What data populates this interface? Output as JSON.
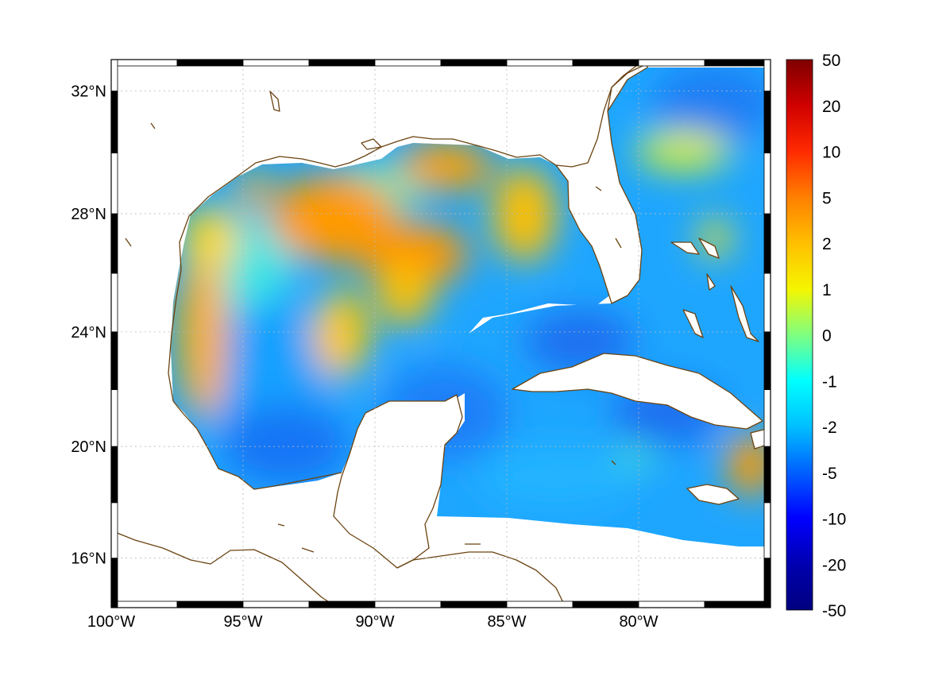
{
  "map": {
    "lon_range": [
      -100,
      -75
    ],
    "lat_range": [
      14.2,
      33
    ],
    "lon_ticks": [
      -100,
      -95,
      -90,
      -85,
      -80
    ],
    "lat_ticks": [
      16,
      20,
      24,
      28,
      32
    ],
    "lon_labels": [
      "100°W",
      "95°W",
      "90°W",
      "85°W",
      "80°W"
    ],
    "lat_labels": [
      "16°N",
      "20°N",
      "24°N",
      "28°N",
      "32°N"
    ],
    "grid": true,
    "frame_style": "alternating black/white graduated border",
    "coastline_color": "#6b4310",
    "field_description_colormap": "jet"
  },
  "colorbar": {
    "position": "right",
    "labels": [
      "50",
      "20",
      "10",
      "5",
      "2",
      "1",
      "0",
      "-1",
      "-2",
      "-5",
      "-10",
      "-20",
      "-50"
    ],
    "colors_top_to_bottom": [
      "#7f0000",
      "#d00000",
      "#ff2a00",
      "#ff7f00",
      "#ffbf00",
      "#f5f500",
      "#7fff7f",
      "#00ffff",
      "#00bfff",
      "#0060ff",
      "#0000ff",
      "#0000b0",
      "#00007f"
    ]
  }
}
